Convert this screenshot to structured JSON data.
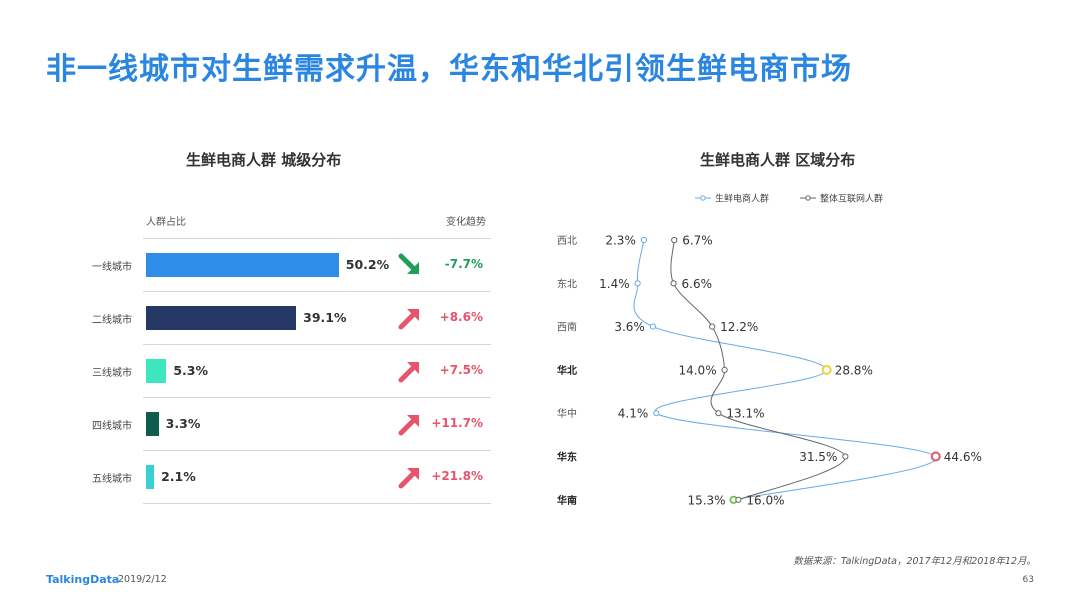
{
  "title": "非一线城市对生鲜需求升温，华东和华北引领生鲜电商市场",
  "footer": {
    "brand": "TalkingData",
    "date": "2019/2/12",
    "source": "数据来源：TalkingData，2017年12月和2018年12月。",
    "page": "63"
  },
  "colors": {
    "title": "#2a86e0",
    "up": "#e8546b",
    "down": "#1f9e5a",
    "series_fresh": "#6aaae4",
    "series_all": "#666666",
    "highlight_yellow": "#ecd43c",
    "highlight_red": "#e8546b",
    "highlight_green": "#6cc04a"
  },
  "chart_data": [
    {
      "type": "bar",
      "title": "生鲜电商人群   城级分布",
      "header_left": "人群占比",
      "header_right": "变化趋势",
      "categories": [
        "一线城市",
        "二线城市",
        "三线城市",
        "四线城市",
        "五线城市"
      ],
      "values": [
        50.2,
        39.1,
        5.3,
        3.3,
        2.1
      ],
      "value_labels": [
        "50.2%",
        "39.1%",
        "5.3%",
        "3.3%",
        "2.1%"
      ],
      "bar_colors": [
        "#2e8de6",
        "#263966",
        "#3ee6c0",
        "#0d5c4c",
        "#39d0d4"
      ],
      "trend": [
        "-7.7%",
        "+8.6%",
        "+7.5%",
        "+11.7%",
        "+21.8%"
      ],
      "trend_direction": [
        "down",
        "up",
        "up",
        "up",
        "up"
      ]
    },
    {
      "type": "line",
      "title": "生鲜电商人群   区域分布",
      "categories": [
        "西北",
        "东北",
        "西南",
        "华北",
        "华中",
        "华东",
        "华南"
      ],
      "bold_categories": [
        "华北",
        "华东",
        "华南"
      ],
      "series": [
        {
          "name": "生鲜电商人群",
          "values": [
            2.3,
            1.4,
            3.6,
            28.8,
            4.1,
            44.6,
            15.3
          ],
          "labels": [
            "2.3%",
            "1.4%",
            "3.6%",
            "28.8%",
            "4.1%",
            "44.6%",
            "15.3%"
          ]
        },
        {
          "name": "整体互联网人群",
          "values": [
            6.7,
            6.6,
            12.2,
            14.0,
            13.1,
            31.5,
            16.0
          ],
          "labels": [
            "6.7%",
            "6.6%",
            "12.2%",
            "14.0%",
            "13.1%",
            "31.5%",
            "16.0%"
          ]
        }
      ],
      "legend_position": "top"
    }
  ]
}
